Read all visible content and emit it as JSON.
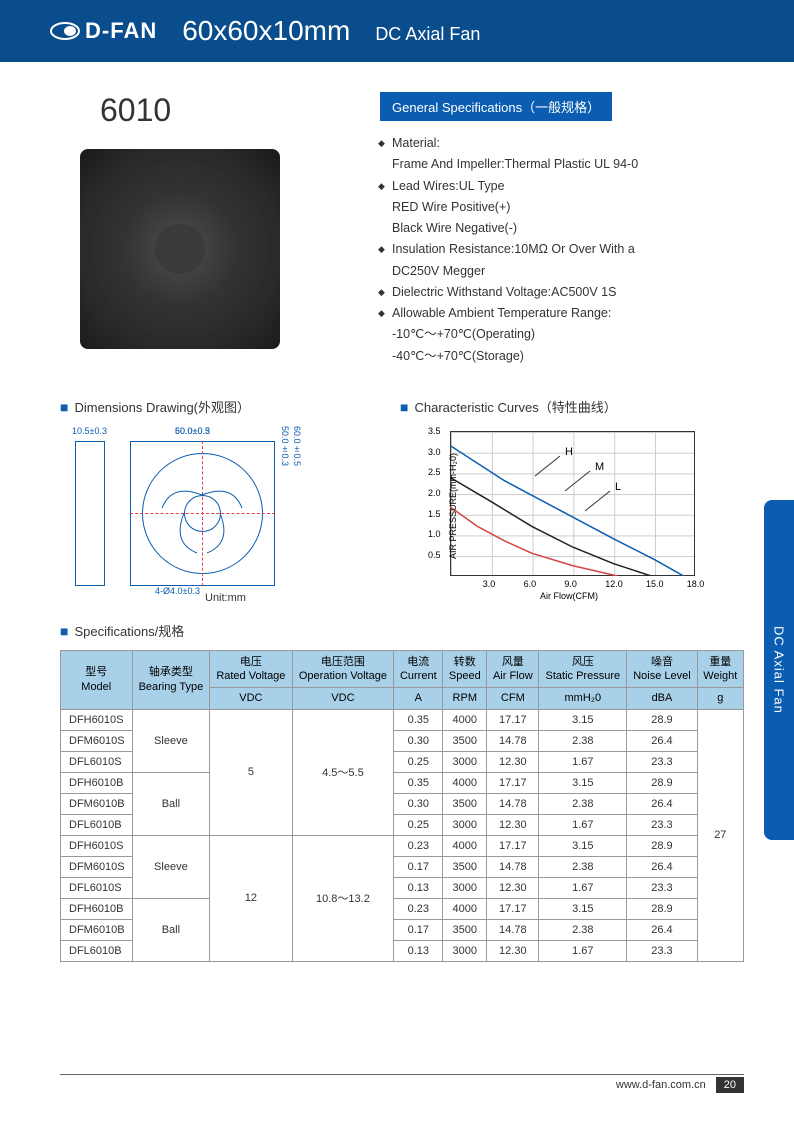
{
  "header": {
    "logo_text": "D-FAN",
    "title_size": "60x60x10mm",
    "title_type": "DC Axial Fan"
  },
  "model_number": "6010",
  "general_specs": {
    "header": "General Specifications（一般规格）",
    "items": [
      {
        "text": "Material:",
        "bullet": true
      },
      {
        "text": "Frame And Impeller:Thermal Plastic UL 94-0",
        "bullet": false
      },
      {
        "text": "Lead Wires:UL Type",
        "bullet": true
      },
      {
        "text": "RED Wire Positive(+)",
        "bullet": false
      },
      {
        "text": "Black Wire Negative(-)",
        "bullet": false
      },
      {
        "text": "Insulation Resistance:10MΩ Or Over With a",
        "bullet": true
      },
      {
        "text": "DC250V Megger",
        "bullet": false
      },
      {
        "text": "Dielectric Withstand Voltage:AC500V 1S",
        "bullet": true
      },
      {
        "text": "Allowable Ambient Temperature Range:",
        "bullet": true
      },
      {
        "text": "-10℃～+70℃(Operating)",
        "bullet": false
      },
      {
        "text": "-40℃～+70℃(Storage)",
        "bullet": false
      }
    ]
  },
  "sections": {
    "dimensions_title": "Dimensions Drawing(外观图）",
    "curves_title": "Characteristic Curves（特性曲线）",
    "specs_title": "Specifications/规格"
  },
  "dimensions": {
    "side_width": "10.5±0.3",
    "outer_w": "60.0±0.5",
    "inner_w": "50.0±0.3",
    "outer_h": "60.0±0.5",
    "inner_h": "50.0±0.3",
    "hole": "4-Ø4.0±0.3",
    "unit": "Unit:mm"
  },
  "chart": {
    "type": "line",
    "ylabel": "AIR PRESSURE(mm-H₂0)",
    "xlabel": "Air Flow(CFM)",
    "yticks": [
      "0.5",
      "1.0",
      "1.5",
      "2.0",
      "2.5",
      "3.0",
      "3.5"
    ],
    "xticks": [
      "3.0",
      "6.0",
      "9.0",
      "12.0",
      "15.0",
      "18.0"
    ],
    "ylim": [
      0,
      3.5
    ],
    "xlim": [
      0,
      18
    ],
    "grid_color": "#cccccc",
    "border_color": "#333333",
    "curves": [
      {
        "label": "H",
        "color": "#0a5db0",
        "points": [
          [
            0,
            3.15
          ],
          [
            4,
            2.3
          ],
          [
            8,
            1.6
          ],
          [
            12,
            0.9
          ],
          [
            15,
            0.4
          ],
          [
            17.17,
            0
          ]
        ]
      },
      {
        "label": "M",
        "color": "#222222",
        "points": [
          [
            0,
            2.38
          ],
          [
            3,
            1.8
          ],
          [
            6,
            1.2
          ],
          [
            9,
            0.7
          ],
          [
            12,
            0.3
          ],
          [
            14.78,
            0
          ]
        ]
      },
      {
        "label": "L",
        "color": "#d44444",
        "points": [
          [
            0,
            1.67
          ],
          [
            2,
            1.2
          ],
          [
            4,
            0.85
          ],
          [
            6,
            0.55
          ],
          [
            9,
            0.25
          ],
          [
            12.3,
            0
          ]
        ]
      }
    ],
    "curve_label_positions": [
      {
        "label": "H",
        "x": 165,
        "y": 20
      },
      {
        "label": "M",
        "x": 195,
        "y": 35
      },
      {
        "label": "L",
        "x": 215,
        "y": 55
      }
    ]
  },
  "table": {
    "headers": [
      {
        "cn": "型号",
        "en": "Model"
      },
      {
        "cn": "轴承类型",
        "en": "Bearing Type"
      },
      {
        "cn": "电压",
        "en": "Rated Voltage"
      },
      {
        "cn": "电压范围",
        "en": "Operation Voltage"
      },
      {
        "cn": "电流",
        "en": "Current"
      },
      {
        "cn": "转数",
        "en": "Speed"
      },
      {
        "cn": "风量",
        "en": "Air Flow"
      },
      {
        "cn": "风压",
        "en": "Static Pressure"
      },
      {
        "cn": "噪音",
        "en": "Noise Level"
      },
      {
        "cn": "重量",
        "en": "Weight"
      }
    ],
    "units": [
      "",
      "",
      "VDC",
      "VDC",
      "A",
      "RPM",
      "CFM",
      "mmH₂0",
      "dBA",
      "g"
    ],
    "rows": [
      {
        "model": "DFH6010S",
        "bearing": "Sleeve",
        "brspan": 3,
        "vdc": "5",
        "vrspan": 6,
        "op": "4.5～5.5",
        "oprspan": 6,
        "cur": "0.35",
        "spd": "4000",
        "flow": "17.17",
        "pres": "3.15",
        "noise": "28.9",
        "wt": "27",
        "wtspan": 12
      },
      {
        "model": "DFM6010S",
        "cur": "0.30",
        "spd": "3500",
        "flow": "14.78",
        "pres": "2.38",
        "noise": "26.4"
      },
      {
        "model": "DFL6010S",
        "cur": "0.25",
        "spd": "3000",
        "flow": "12.30",
        "pres": "1.67",
        "noise": "23.3"
      },
      {
        "model": "DFH6010B",
        "bearing": "Ball",
        "brspan": 3,
        "cur": "0.35",
        "spd": "4000",
        "flow": "17.17",
        "pres": "3.15",
        "noise": "28.9"
      },
      {
        "model": "DFM6010B",
        "cur": "0.30",
        "spd": "3500",
        "flow": "14.78",
        "pres": "2.38",
        "noise": "26.4"
      },
      {
        "model": "DFL6010B",
        "cur": "0.25",
        "spd": "3000",
        "flow": "12.30",
        "pres": "1.67",
        "noise": "23.3"
      },
      {
        "model": "DFH6010S",
        "bearing": "Sleeve",
        "brspan": 3,
        "vdc": "12",
        "vrspan": 6,
        "op": "10.8～13.2",
        "oprspan": 6,
        "cur": "0.23",
        "spd": "4000",
        "flow": "17.17",
        "pres": "3.15",
        "noise": "28.9"
      },
      {
        "model": "DFM6010S",
        "cur": "0.17",
        "spd": "3500",
        "flow": "14.78",
        "pres": "2.38",
        "noise": "26.4"
      },
      {
        "model": "DFL6010S",
        "cur": "0.13",
        "spd": "3000",
        "flow": "12.30",
        "pres": "1.67",
        "noise": "23.3"
      },
      {
        "model": "DFH6010B",
        "bearing": "Ball",
        "brspan": 3,
        "cur": "0.23",
        "spd": "4000",
        "flow": "17.17",
        "pres": "3.15",
        "noise": "28.9"
      },
      {
        "model": "DFM6010B",
        "cur": "0.17",
        "spd": "3500",
        "flow": "14.78",
        "pres": "2.38",
        "noise": "26.4"
      },
      {
        "model": "DFL6010B",
        "cur": "0.13",
        "spd": "3000",
        "flow": "12.30",
        "pres": "1.67",
        "noise": "23.3"
      }
    ],
    "header_bg": "#a8d0e8",
    "border_color": "#999999"
  },
  "side_tab": "DC Axial Fan",
  "footer": {
    "url": "www.d-fan.com.cn",
    "page": "20"
  }
}
